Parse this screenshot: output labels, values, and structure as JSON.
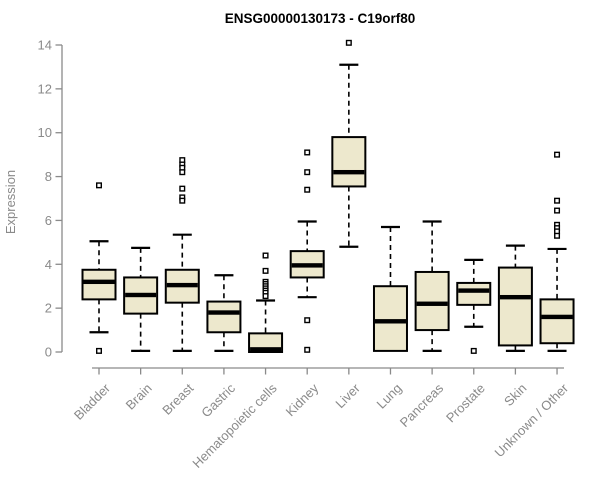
{
  "chart_data": {
    "type": "boxplot",
    "title": "ENSG00000130173 - C19orf80",
    "xlabel": "",
    "ylabel": "Expression",
    "ylim": [
      0,
      14
    ],
    "yticks": [
      0,
      2,
      4,
      6,
      8,
      10,
      12,
      14
    ],
    "grid": "off",
    "legend": "none",
    "categories": [
      "Bladder",
      "Brain",
      "Breast",
      "Gastric",
      "Hematopoietic cells",
      "Kidney",
      "Liver",
      "Lung",
      "Pancreas",
      "Prostate",
      "Skin",
      "Unknown / Other"
    ],
    "series": [
      {
        "name": "Bladder",
        "whisker_low": 0.9,
        "q1": 2.4,
        "median": 3.2,
        "q3": 3.75,
        "whisker_high": 5.05,
        "outliers": [
          7.6,
          0.05
        ]
      },
      {
        "name": "Brain",
        "whisker_low": 0.05,
        "q1": 1.75,
        "median": 2.6,
        "q3": 3.4,
        "whisker_high": 4.75,
        "outliers": []
      },
      {
        "name": "Breast",
        "whisker_low": 0.05,
        "q1": 2.25,
        "median": 3.05,
        "q3": 3.75,
        "whisker_high": 5.35,
        "outliers": [
          8.75,
          8.55,
          8.4,
          8.2,
          7.45,
          7.05,
          6.9
        ]
      },
      {
        "name": "Gastric",
        "whisker_low": 0.05,
        "q1": 0.9,
        "median": 1.8,
        "q3": 2.3,
        "whisker_high": 3.5,
        "outliers": []
      },
      {
        "name": "Hematopoietic cells",
        "whisker_low": 0.0,
        "q1": 0.0,
        "median": 0.12,
        "q3": 0.85,
        "whisker_high": 2.35,
        "outliers": [
          4.4,
          3.7,
          3.2,
          3.1,
          3.0,
          2.9,
          2.8,
          2.7,
          2.55
        ]
      },
      {
        "name": "Kidney",
        "whisker_low": 2.5,
        "q1": 3.4,
        "median": 3.95,
        "q3": 4.6,
        "whisker_high": 5.95,
        "outliers": [
          9.1,
          8.2,
          7.4,
          1.45,
          0.1
        ]
      },
      {
        "name": "Liver",
        "whisker_low": 4.8,
        "q1": 7.55,
        "median": 8.2,
        "q3": 9.8,
        "whisker_high": 13.1,
        "outliers": [
          14.1
        ]
      },
      {
        "name": "Lung",
        "whisker_low": 0.05,
        "q1": 0.05,
        "median": 1.4,
        "q3": 3.0,
        "whisker_high": 5.7,
        "outliers": []
      },
      {
        "name": "Pancreas",
        "whisker_low": 0.05,
        "q1": 1.0,
        "median": 2.2,
        "q3": 3.65,
        "whisker_high": 5.95,
        "outliers": []
      },
      {
        "name": "Prostate",
        "whisker_low": 1.15,
        "q1": 2.15,
        "median": 2.8,
        "q3": 3.15,
        "whisker_high": 4.2,
        "outliers": [
          0.05
        ]
      },
      {
        "name": "Skin",
        "whisker_low": 0.05,
        "q1": 0.3,
        "median": 2.5,
        "q3": 3.85,
        "whisker_high": 4.85,
        "outliers": []
      },
      {
        "name": "Unknown / Other",
        "whisker_low": 0.05,
        "q1": 0.4,
        "median": 1.6,
        "q3": 2.4,
        "whisker_high": 4.7,
        "outliers": [
          9.0,
          6.9,
          6.45,
          5.8,
          5.65,
          5.5,
          5.3
        ]
      }
    ],
    "colors": {
      "box_fill": "#EDE8CD",
      "box_stroke": "#000000",
      "median": "#000000",
      "whisker": "#000000",
      "outlier_stroke": "#000000",
      "outlier_fill": "#ffffff",
      "axis": "#8a8a8a",
      "title": "#000000",
      "background": "#ffffff"
    }
  }
}
